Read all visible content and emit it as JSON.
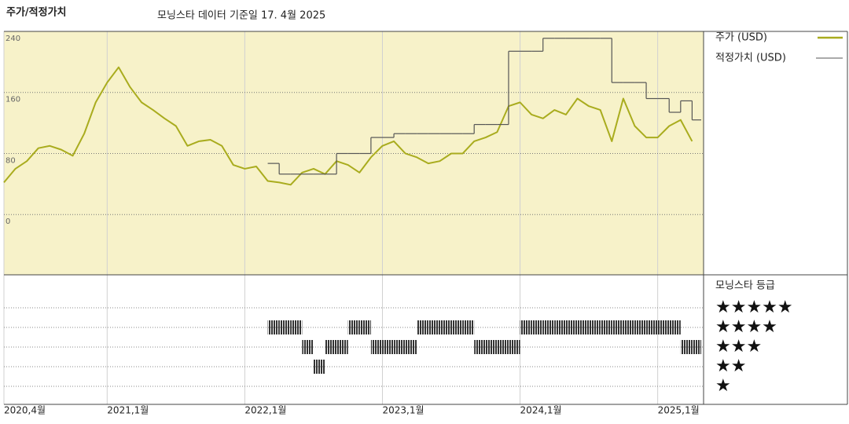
{
  "chart_data": {
    "type": "line",
    "title": "주가/적정가치",
    "subtitle": "모닝스타 데이터 기준일 17. 4월 2025",
    "x": [
      "2020-04",
      "2020-05",
      "2020-06",
      "2020-07",
      "2020-08",
      "2020-09",
      "2020-10",
      "2020-11",
      "2020-12",
      "2021-01",
      "2021-02",
      "2021-03",
      "2021-04",
      "2021-05",
      "2021-06",
      "2021-07",
      "2021-08",
      "2021-09",
      "2021-10",
      "2021-11",
      "2021-12",
      "2022-01",
      "2022-02",
      "2022-03",
      "2022-04",
      "2022-05",
      "2022-06",
      "2022-07",
      "2022-08",
      "2022-09",
      "2022-10",
      "2022-11",
      "2022-12",
      "2023-01",
      "2023-02",
      "2023-03",
      "2023-04",
      "2023-05",
      "2023-06",
      "2023-07",
      "2023-08",
      "2023-09",
      "2023-10",
      "2023-11",
      "2023-12",
      "2024-01",
      "2024-02",
      "2024-03",
      "2024-04",
      "2024-05",
      "2024-06",
      "2024-07",
      "2024-08",
      "2024-09",
      "2024-10",
      "2024-11",
      "2024-12",
      "2025-01",
      "2025-02",
      "2025-03",
      "2025-04"
    ],
    "xlim": [
      "2020-04",
      "2025-05"
    ],
    "xticks": [
      {
        "value": "2020-04",
        "label": "2020,4월"
      },
      {
        "value": "2021-01",
        "label": "2021,1월"
      },
      {
        "value": "2022-01",
        "label": "2022,1월"
      },
      {
        "value": "2023-01",
        "label": "2023,1월"
      },
      {
        "value": "2024-01",
        "label": "2024,1월"
      },
      {
        "value": "2025-01",
        "label": "2025,1월"
      }
    ],
    "ylim": [
      -79,
      240
    ],
    "yticks": [
      0,
      80,
      160,
      240
    ],
    "grid": true,
    "series": [
      {
        "name": "주가 (USD)",
        "color": "#a9ac1e",
        "values": [
          42,
          60,
          70,
          87,
          90,
          85,
          77,
          106,
          147,
          173,
          193,
          167,
          147,
          137,
          126,
          116,
          90,
          96,
          98,
          90,
          65,
          60,
          63,
          44,
          42,
          39,
          55,
          60,
          53,
          70,
          65,
          55,
          75,
          90,
          96,
          80,
          75,
          67,
          70,
          80,
          80,
          96,
          101,
          108,
          142,
          147,
          131,
          126,
          137,
          131,
          152,
          142,
          137,
          96,
          152,
          116,
          101,
          101,
          116,
          124,
          96
        ]
      },
      {
        "name": "적정가치 (USD)",
        "color": "#555555",
        "step": true,
        "values": [
          null,
          null,
          null,
          null,
          null,
          null,
          null,
          null,
          null,
          null,
          null,
          null,
          null,
          null,
          null,
          null,
          null,
          null,
          null,
          null,
          null,
          null,
          null,
          67,
          53,
          53,
          53,
          53,
          53,
          80,
          80,
          80,
          101,
          101,
          106,
          106,
          106,
          106,
          106,
          106,
          106,
          118,
          118,
          118,
          214,
          214,
          214,
          231,
          231,
          231,
          231,
          231,
          231,
          173,
          173,
          173,
          152,
          152,
          134,
          149,
          124
        ]
      }
    ],
    "ratings": {
      "title": "모닝스타 등급",
      "color": "#333333",
      "labels": [
        "★★★★★",
        "★★★★",
        "★★★",
        "★★",
        "★"
      ],
      "values": [
        null,
        null,
        null,
        null,
        null,
        null,
        null,
        null,
        null,
        null,
        null,
        null,
        null,
        null,
        null,
        null,
        null,
        null,
        null,
        null,
        null,
        null,
        null,
        4,
        4,
        4,
        3,
        2,
        3,
        3,
        4,
        4,
        3,
        3,
        3,
        3,
        4,
        4,
        4,
        4,
        4,
        3,
        3,
        3,
        3,
        4,
        4,
        4,
        4,
        4,
        4,
        4,
        4,
        4,
        4,
        4,
        4,
        4,
        4,
        3,
        3
      ]
    }
  }
}
